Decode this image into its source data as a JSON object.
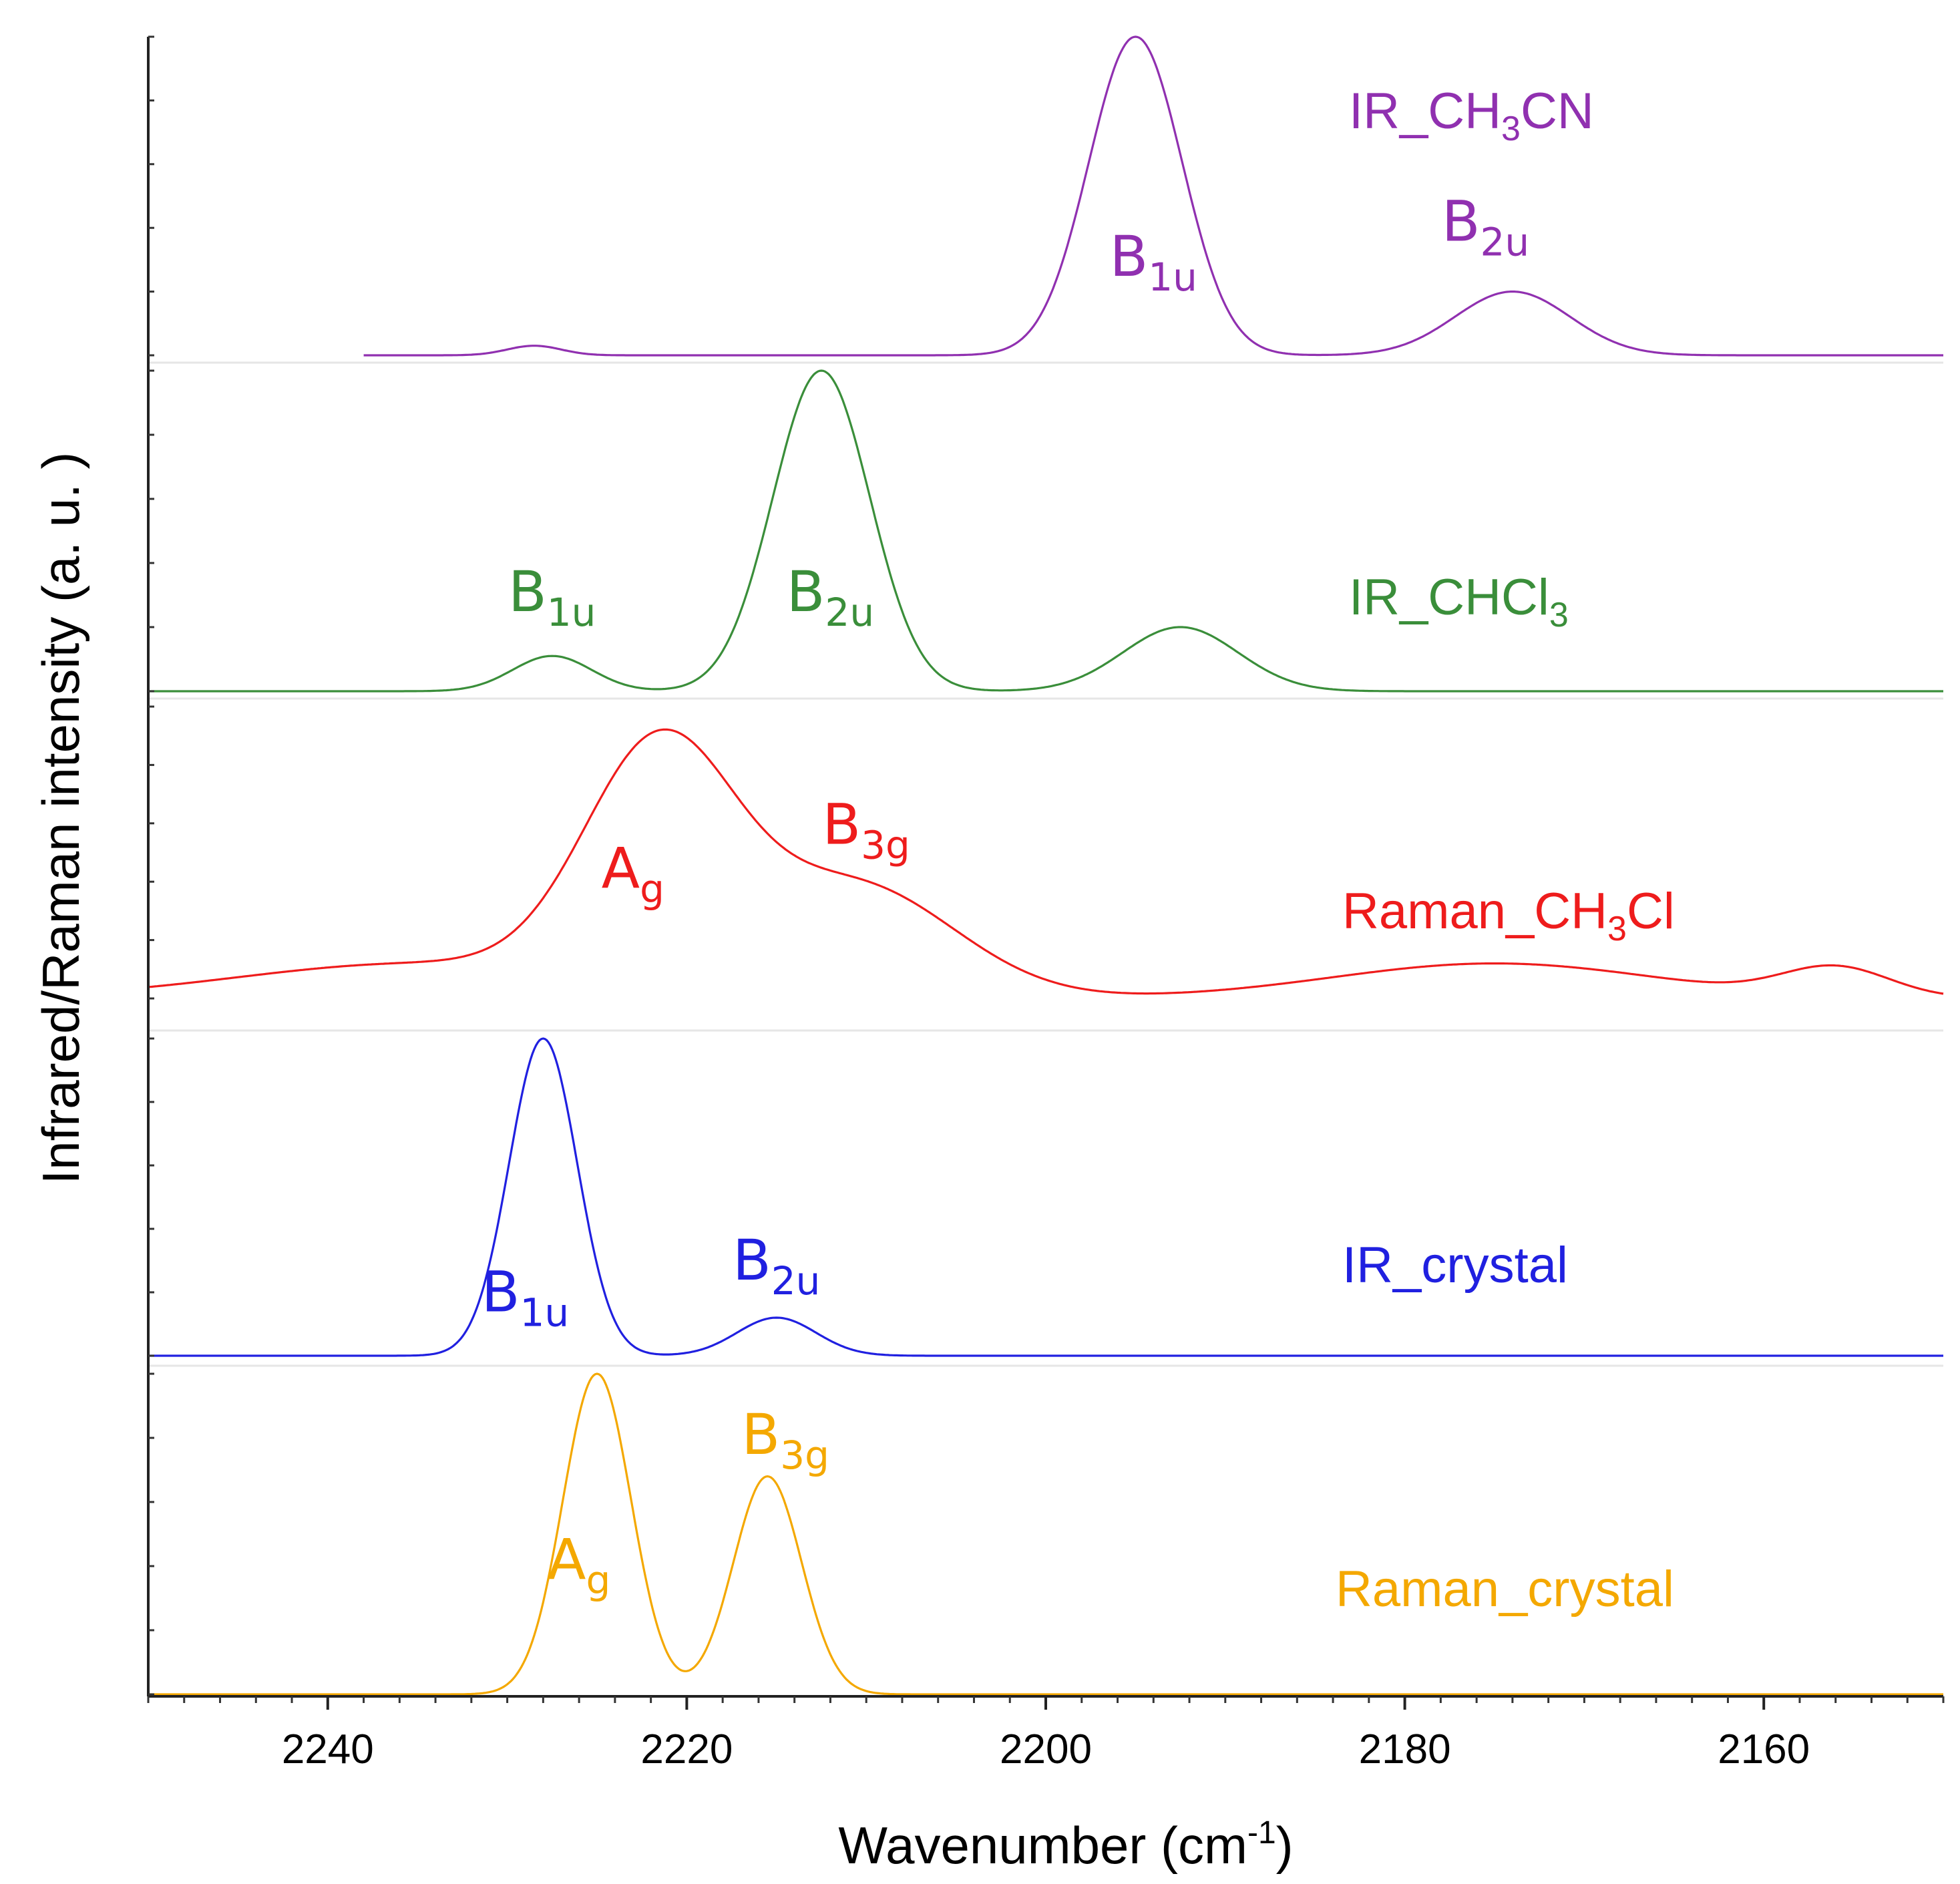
{
  "chart_data": {
    "type": "line",
    "title": "",
    "xlabel": "Wavenumber (cm",
    "xlabel_sup": "-1",
    "xlabel_tail": ")",
    "ylabel": "Infrared/Raman intensity (a. u. )",
    "xlim": [
      2250,
      2150
    ],
    "x_reversed": true,
    "xticks": [
      2240,
      2220,
      2200,
      2180,
      2160
    ],
    "yticks_labeled": false,
    "series": [
      {
        "name": "IR_CH3CN",
        "name_parts": [
          "IR_CH",
          "3",
          "CN"
        ],
        "color": "#9030b0",
        "x_start": 2238,
        "x_end": 2150,
        "baseline": 0.0,
        "peaks": [
          {
            "center": 2228.5,
            "height": 0.03,
            "width": 1.5
          },
          {
            "center": 2195,
            "height": 1.0,
            "width": 2.6
          },
          {
            "center": 2174,
            "height": 0.2,
            "width": 3.2
          }
        ],
        "annotations": [
          {
            "mode": "B",
            "sub": "1u",
            "x": 2194,
            "level": 0.25
          },
          {
            "mode": "B",
            "sub": "2u",
            "x": 2175.5,
            "level": 0.36
          }
        ]
      },
      {
        "name": "IR_CHCl3",
        "name_parts": [
          "IR_CHCl",
          "3",
          ""
        ],
        "color": "#3a8e3a",
        "x_start": 2250,
        "x_end": 2150,
        "baseline": 0.0,
        "peaks": [
          {
            "center": 2227.5,
            "height": 0.11,
            "width": 2.2
          },
          {
            "center": 2212.5,
            "height": 1.0,
            "width": 2.7
          },
          {
            "center": 2192.5,
            "height": 0.2,
            "width": 3.2
          }
        ],
        "annotations": [
          {
            "mode": "B",
            "sub": "1u",
            "x": 2227.5,
            "level": 0.25
          },
          {
            "mode": "B",
            "sub": "2u",
            "x": 2212,
            "level": 0.25
          }
        ]
      },
      {
        "name": "Raman_CH3Cl",
        "name_parts": [
          "Raman_CH",
          "3",
          "Cl"
        ],
        "color": "#ee1c1c",
        "x_start": 2250,
        "x_end": 2150,
        "baseline": 0.0,
        "peaks": [
          {
            "center": 2221.5,
            "height": 0.82,
            "width": 4.2
          },
          {
            "center": 2210.5,
            "height": 0.38,
            "width": 5.5
          },
          {
            "center": 2235,
            "height": 0.12,
            "width": 10
          },
          {
            "center": 2175,
            "height": 0.12,
            "width": 9
          },
          {
            "center": 2156,
            "height": 0.1,
            "width": 3
          }
        ],
        "annotations": [
          {
            "mode": "A",
            "sub": "g",
            "x": 2223,
            "level": 0.38
          },
          {
            "mode": "B",
            "sub": "3g",
            "x": 2210,
            "level": 0.53
          }
        ]
      },
      {
        "name": "IR_crystal",
        "name_parts": [
          "IR_crystal",
          "",
          ""
        ],
        "color": "#2020e0",
        "x_start": 2250,
        "x_end": 2150,
        "baseline": 0.0,
        "peaks": [
          {
            "center": 2228,
            "height": 1.0,
            "width": 1.9
          },
          {
            "center": 2215,
            "height": 0.12,
            "width": 2.2
          }
        ],
        "annotations": [
          {
            "mode": "B",
            "sub": "1u",
            "x": 2229,
            "level": 0.14
          },
          {
            "mode": "B",
            "sub": "2u",
            "x": 2215,
            "level": 0.24
          }
        ]
      },
      {
        "name": "Raman_crystal",
        "name_parts": [
          "Raman_crystal",
          "",
          ""
        ],
        "color": "#f4a800",
        "x_start": 2250,
        "x_end": 2150,
        "baseline": 0.0,
        "peaks": [
          {
            "center": 2225,
            "height": 1.0,
            "width": 1.9
          },
          {
            "center": 2215.5,
            "height": 0.68,
            "width": 1.9
          }
        ],
        "annotations": [
          {
            "mode": "A",
            "sub": "g",
            "x": 2226,
            "level": 0.36
          },
          {
            "mode": "B",
            "sub": "3g",
            "x": 2214.5,
            "level": 0.75
          }
        ]
      }
    ]
  }
}
